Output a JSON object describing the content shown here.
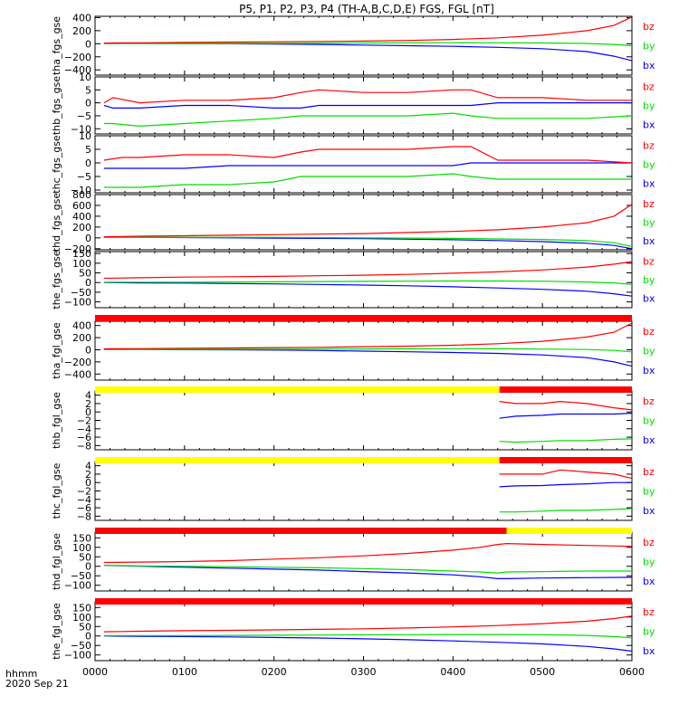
{
  "title": "P5, P1, P2, P3, P4 (TH-A,B,C,D,E) FGS, FGL [nT]",
  "xaxis": {
    "ticks": [
      "0000",
      "0100",
      "0200",
      "0300",
      "0400",
      "0500",
      "0600"
    ],
    "label": "hhmm",
    "date": "2020 Sep 21"
  },
  "colors": {
    "bz": "#ff0000",
    "by": "#00dd00",
    "bx": "#0000ff",
    "red_bar": "#ff0000",
    "yellow_bar": "#ffff00"
  },
  "chart_data": [
    {
      "type": "line",
      "ylabel": "tha_fgs_gse",
      "ylim": [
        -480,
        420
      ],
      "yticks": [
        400,
        200,
        0,
        -200,
        -400
      ],
      "yticklabels": [
        "400",
        "200",
        "0",
        "−200",
        "−400"
      ],
      "x": [
        0.1,
        0.5,
        1.0,
        1.5,
        2.0,
        2.5,
        3.0,
        3.5,
        4.0,
        4.5,
        5.0,
        5.5,
        5.8,
        6.0
      ],
      "series": [
        {
          "name": "bz",
          "values": [
            10,
            15,
            20,
            25,
            30,
            35,
            40,
            50,
            65,
            90,
            130,
            200,
            280,
            410
          ]
        },
        {
          "name": "by",
          "values": [
            5,
            5,
            5,
            6,
            8,
            10,
            12,
            14,
            16,
            15,
            12,
            5,
            -10,
            -30
          ]
        },
        {
          "name": "bx",
          "values": [
            5,
            4,
            3,
            0,
            -5,
            -10,
            -20,
            -30,
            -40,
            -55,
            -75,
            -120,
            -190,
            -260
          ]
        }
      ]
    },
    {
      "type": "line",
      "ylabel": "thb_fgs_gse",
      "ylim": [
        -12,
        10
      ],
      "yticks": [
        10,
        5,
        0,
        -5,
        -10
      ],
      "yticklabels": [
        "10",
        "5",
        "0",
        "−5",
        "−10"
      ],
      "x": [
        0.1,
        0.2,
        0.5,
        1.0,
        1.5,
        2.0,
        2.3,
        2.5,
        3.0,
        3.5,
        4.0,
        4.2,
        4.5,
        5.0,
        5.5,
        6.0
      ],
      "series": [
        {
          "name": "bz",
          "values": [
            0,
            2,
            0,
            1,
            1,
            2,
            4,
            5,
            4,
            4,
            5,
            5,
            2,
            2,
            1,
            1
          ]
        },
        {
          "name": "by",
          "values": [
            -8,
            -8,
            -9,
            -8,
            -7,
            -6,
            -5,
            -5,
            -5,
            -5,
            -4,
            -5,
            -6,
            -6,
            -6,
            -5
          ]
        },
        {
          "name": "bx",
          "values": [
            -1,
            -2,
            -2,
            -1,
            -1,
            -2,
            -2,
            -1,
            -1,
            -1,
            -1,
            -1,
            0,
            0,
            0,
            0
          ]
        }
      ]
    },
    {
      "type": "line",
      "ylabel": "thc_fgs_gse",
      "ylim": [
        -11,
        10
      ],
      "yticks": [
        10,
        5,
        0,
        -5,
        -10
      ],
      "yticklabels": [
        "10",
        "5",
        "0",
        "−5",
        "−10"
      ],
      "x": [
        0.1,
        0.3,
        0.5,
        1.0,
        1.5,
        2.0,
        2.3,
        2.5,
        3.0,
        3.5,
        4.0,
        4.2,
        4.5,
        5.0,
        5.5,
        6.0
      ],
      "series": [
        {
          "name": "bz",
          "values": [
            1,
            2,
            2,
            3,
            3,
            2,
            4,
            5,
            5,
            5,
            6,
            6,
            1,
            1,
            1,
            0
          ]
        },
        {
          "name": "by",
          "values": [
            -9,
            -9,
            -9,
            -8,
            -8,
            -7,
            -5,
            -5,
            -5,
            -5,
            -4,
            -5,
            -6,
            -6,
            -6,
            -6
          ]
        },
        {
          "name": "bx",
          "values": [
            -2,
            -2,
            -2,
            -2,
            -1,
            -1,
            -1,
            -1,
            -1,
            -1,
            -1,
            0,
            0,
            0,
            0,
            0
          ]
        }
      ]
    },
    {
      "type": "line",
      "ylabel": "thd_fgs_gse",
      "ylim": [
        -220,
        800
      ],
      "yticks": [
        800,
        600,
        400,
        200,
        0,
        -200
      ],
      "yticklabels": [
        "800",
        "600",
        "400",
        "200",
        "0",
        "−200"
      ],
      "x": [
        0.1,
        0.5,
        1.0,
        1.5,
        2.0,
        2.5,
        3.0,
        3.5,
        4.0,
        4.5,
        5.0,
        5.5,
        5.8,
        6.0
      ],
      "series": [
        {
          "name": "bz",
          "values": [
            20,
            30,
            40,
            50,
            60,
            70,
            80,
            100,
            120,
            150,
            200,
            280,
            400,
            620
          ]
        },
        {
          "name": "by",
          "values": [
            10,
            10,
            10,
            10,
            10,
            5,
            0,
            -5,
            -10,
            -20,
            -30,
            -50,
            -90,
            -160
          ]
        },
        {
          "name": "bx",
          "values": [
            10,
            10,
            5,
            0,
            -5,
            -10,
            -15,
            -25,
            -35,
            -50,
            -70,
            -100,
            -140,
            -200
          ]
        }
      ]
    },
    {
      "type": "line",
      "ylabel": "the_fgs_gse",
      "ylim": [
        -130,
        160
      ],
      "yticks": [
        150,
        100,
        50,
        0,
        -50,
        -100
      ],
      "yticklabels": [
        "150",
        "100",
        "50",
        "0",
        "−50",
        "−100"
      ],
      "x": [
        0.1,
        0.5,
        1.0,
        1.5,
        2.0,
        2.5,
        3.0,
        3.5,
        4.0,
        4.5,
        5.0,
        5.5,
        5.8,
        6.0
      ],
      "series": [
        {
          "name": "bz",
          "values": [
            22,
            25,
            28,
            30,
            32,
            35,
            38,
            42,
            48,
            55,
            65,
            80,
            95,
            108
          ]
        },
        {
          "name": "by",
          "values": [
            2,
            2,
            2,
            3,
            4,
            5,
            6,
            7,
            8,
            8,
            7,
            3,
            -2,
            -10
          ]
        },
        {
          "name": "bx",
          "values": [
            0,
            -2,
            -3,
            -5,
            -7,
            -10,
            -13,
            -17,
            -22,
            -28,
            -35,
            -45,
            -58,
            -70
          ]
        }
      ]
    },
    {
      "type": "line",
      "ylabel": "tha_fgl_gse",
      "ylim": [
        -500,
        470
      ],
      "yticks": [
        400,
        200,
        0,
        -200,
        -400
      ],
      "yticklabels": [
        "400",
        "200",
        "0",
        "−200",
        "−400"
      ],
      "x": [
        0.1,
        0.5,
        1.0,
        1.5,
        2.0,
        2.5,
        3.0,
        3.5,
        4.0,
        4.5,
        5.0,
        5.5,
        5.8,
        6.0
      ],
      "series": [
        {
          "name": "bz",
          "values": [
            15,
            20,
            25,
            30,
            35,
            40,
            50,
            60,
            75,
            100,
            140,
            210,
            290,
            440
          ]
        },
        {
          "name": "by",
          "values": [
            8,
            8,
            8,
            9,
            10,
            12,
            14,
            16,
            18,
            16,
            12,
            5,
            -10,
            -35
          ]
        },
        {
          "name": "bx",
          "values": [
            5,
            4,
            2,
            0,
            -5,
            -12,
            -22,
            -33,
            -45,
            -60,
            -85,
            -130,
            -200,
            -270
          ]
        }
      ]
    },
    {
      "type": "line",
      "ylabel": "thb_fgl_gse",
      "ylim": [
        -9,
        5
      ],
      "yticks": [
        4,
        2,
        0,
        -2,
        -4,
        -6,
        -8
      ],
      "yticklabels": [
        "4",
        "2",
        "0",
        "−2",
        "−4",
        "−6",
        "−8"
      ],
      "x": [
        4.52,
        4.7,
        5.0,
        5.2,
        5.5,
        5.8,
        6.0
      ],
      "series": [
        {
          "name": "bz",
          "values": [
            2.5,
            2,
            2,
            2.5,
            2,
            1,
            0.5
          ]
        },
        {
          "name": "by",
          "values": [
            -7,
            -7.2,
            -7,
            -6.8,
            -6.8,
            -6.5,
            -6.4
          ]
        },
        {
          "name": "bx",
          "values": [
            -1.5,
            -1,
            -0.8,
            -0.5,
            -0.5,
            -0.5,
            -0.3
          ]
        }
      ]
    },
    {
      "type": "line",
      "ylabel": "thc_fgl_gse",
      "ylim": [
        -9,
        5
      ],
      "yticks": [
        4,
        2,
        0,
        -2,
        -4,
        -6,
        -8
      ],
      "yticklabels": [
        "4",
        "2",
        "0",
        "−2",
        "−4",
        "−6",
        "−8"
      ],
      "x": [
        4.52,
        4.7,
        5.0,
        5.2,
        5.5,
        5.8,
        6.0
      ],
      "series": [
        {
          "name": "bz",
          "values": [
            2,
            2,
            2,
            3,
            2.5,
            2,
            1
          ]
        },
        {
          "name": "by",
          "values": [
            -7,
            -7,
            -6.8,
            -6.6,
            -6.6,
            -6.4,
            -6.2
          ]
        },
        {
          "name": "bx",
          "values": [
            -1,
            -0.8,
            -0.7,
            -0.5,
            -0.3,
            0,
            0
          ]
        }
      ]
    },
    {
      "type": "line",
      "ylabel": "thd_fgl_gse",
      "ylim": [
        -130,
        180
      ],
      "yticks": [
        150,
        100,
        50,
        0,
        -50,
        -100
      ],
      "yticklabels": [
        "150",
        "100",
        "50",
        "0",
        "−50",
        "−100"
      ],
      "x": [
        0.1,
        0.5,
        1.0,
        1.5,
        2.0,
        2.5,
        3.0,
        3.5,
        4.0,
        4.3,
        4.5,
        4.6,
        5.0,
        5.5,
        6.0
      ],
      "series": [
        {
          "name": "bz",
          "values": [
            20,
            22,
            25,
            30,
            38,
            45,
            55,
            68,
            85,
            100,
            115,
            120,
            115,
            110,
            105
          ]
        },
        {
          "name": "by",
          "values": [
            5,
            2,
            0,
            -2,
            -5,
            -8,
            -12,
            -18,
            -25,
            -30,
            -35,
            -30,
            -28,
            -25,
            -25
          ]
        },
        {
          "name": "bx",
          "values": [
            5,
            0,
            -5,
            -10,
            -15,
            -20,
            -28,
            -35,
            -45,
            -55,
            -65,
            -65,
            -62,
            -60,
            -58
          ]
        }
      ]
    },
    {
      "type": "line",
      "ylabel": "the_fgl_gse",
      "ylim": [
        -130,
        180
      ],
      "yticks": [
        150,
        100,
        50,
        0,
        -50,
        -100
      ],
      "yticklabels": [
        "150",
        "100",
        "50",
        "0",
        "−50",
        "−100"
      ],
      "x": [
        0.1,
        0.5,
        1.0,
        1.5,
        2.0,
        2.5,
        3.0,
        3.5,
        4.0,
        4.5,
        5.0,
        5.5,
        5.8,
        6.0
      ],
      "series": [
        {
          "name": "bz",
          "values": [
            22,
            25,
            28,
            30,
            32,
            35,
            38,
            42,
            48,
            55,
            65,
            78,
            92,
            105
          ]
        },
        {
          "name": "by",
          "values": [
            2,
            2,
            2,
            3,
            4,
            5,
            6,
            7,
            8,
            8,
            7,
            3,
            -3,
            -10
          ]
        },
        {
          "name": "bx",
          "values": [
            0,
            -2,
            -3,
            -5,
            -8,
            -11,
            -15,
            -20,
            -26,
            -33,
            -42,
            -55,
            -68,
            -80
          ]
        }
      ]
    }
  ],
  "status_bars": [
    {
      "after_panel": 4,
      "segments": [
        {
          "x0": 0,
          "x1": 6,
          "color": "red"
        }
      ]
    },
    {
      "after_panel": 5,
      "segments": [
        {
          "x0": 0,
          "x1": 4.52,
          "color": "yellow"
        },
        {
          "x0": 4.52,
          "x1": 6,
          "color": "red"
        }
      ]
    },
    {
      "after_panel": 6,
      "segments": [
        {
          "x0": 0,
          "x1": 4.52,
          "color": "yellow"
        },
        {
          "x0": 4.52,
          "x1": 6,
          "color": "red"
        }
      ]
    },
    {
      "after_panel": 7,
      "segments": [
        {
          "x0": 0,
          "x1": 4.6,
          "color": "red"
        },
        {
          "x0": 4.6,
          "x1": 6,
          "color": "yellow"
        }
      ]
    },
    {
      "after_panel": 8,
      "segments": [
        {
          "x0": 0,
          "x1": 6,
          "color": "red"
        }
      ]
    }
  ]
}
